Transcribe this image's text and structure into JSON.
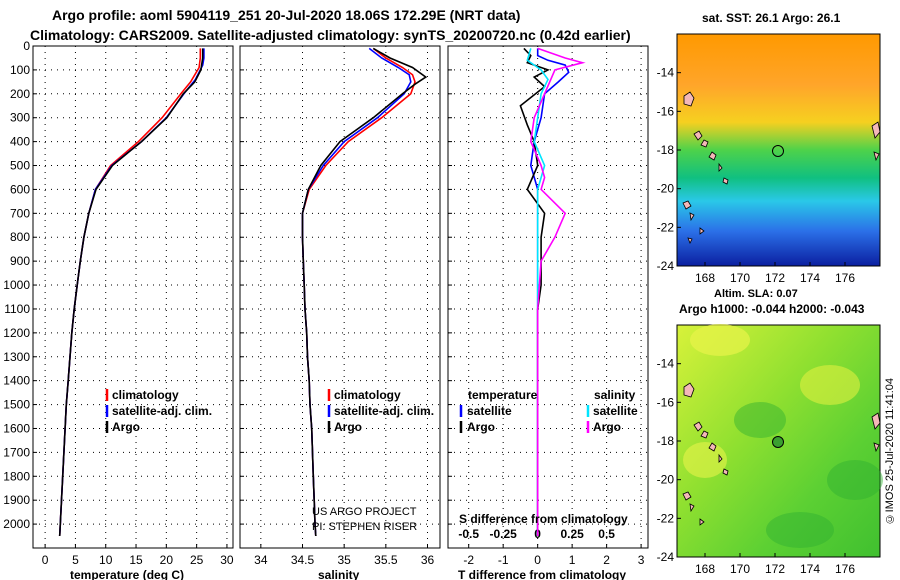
{
  "titles": {
    "line1": "Argo profile: aoml 5904119_251 20-Jul-2020 18.06S 172.29E (NRT data)",
    "line2": "Climatology: CARS2009. Satellite-adjusted climatology: synTS_20200720.nc (0.42d earlier)"
  },
  "side_label": "©IMOS 25-Jul-2020 11:41:04",
  "colors": {
    "climatology": "#ff0000",
    "satellite": "#0000ff",
    "argo": "#000000",
    "sat_salinity": "#00e5ff",
    "argo_salinity": "#ff00ff"
  },
  "chart_data": [
    {
      "type": "line",
      "name": "temperature",
      "xlabel": "temperature (deg C)",
      "xlim": [
        -2,
        31
      ],
      "ylim": [
        2100,
        0
      ],
      "xticks": [
        "0",
        "5",
        "10",
        "15",
        "20",
        "25",
        "30"
      ],
      "xtick_values": [
        0,
        5,
        10,
        15,
        20,
        25,
        30
      ],
      "yticks": [
        "0",
        "100",
        "200",
        "300",
        "400",
        "500",
        "600",
        "700",
        "800",
        "900",
        "1000",
        "1100",
        "1200",
        "1300",
        "1400",
        "1500",
        "1600",
        "1700",
        "1800",
        "1900",
        "2000"
      ],
      "ytick_values": [
        0,
        100,
        200,
        300,
        400,
        500,
        600,
        700,
        800,
        900,
        1000,
        1100,
        1200,
        1300,
        1400,
        1500,
        1600,
        1700,
        1800,
        1900,
        2000
      ],
      "legend": [
        "climatology",
        "satellite-adj. clim.",
        "Argo"
      ],
      "series": [
        {
          "name": "climatology",
          "color": "#ff0000",
          "points": [
            [
              25.6,
              10
            ],
            [
              25.6,
              50
            ],
            [
              25.4,
              90
            ],
            [
              24.0,
              150
            ],
            [
              22.4,
              200
            ],
            [
              19.3,
              300
            ],
            [
              15.4,
              400
            ],
            [
              10.8,
              500
            ],
            [
              8.3,
              600
            ],
            [
              7.2,
              700
            ],
            [
              6.4,
              800
            ],
            [
              5.8,
              900
            ],
            [
              5.3,
              1000
            ],
            [
              4.8,
              1100
            ],
            [
              4.4,
              1200
            ],
            [
              4.1,
              1300
            ],
            [
              3.8,
              1400
            ],
            [
              3.5,
              1500
            ],
            [
              3.3,
              1600
            ],
            [
              3.1,
              1700
            ],
            [
              2.9,
              1800
            ],
            [
              2.7,
              1900
            ],
            [
              2.5,
              2000
            ],
            [
              2.4,
              2050
            ]
          ]
        },
        {
          "name": "satellite-adj. clim.",
          "color": "#0000ff",
          "points": [
            [
              26.2,
              10
            ],
            [
              26.2,
              50
            ],
            [
              26.0,
              80
            ],
            [
              25.6,
              100
            ],
            [
              24.8,
              140
            ],
            [
              22.9,
              200
            ],
            [
              20.0,
              300
            ],
            [
              15.9,
              400
            ],
            [
              11.0,
              500
            ],
            [
              8.3,
              600
            ],
            [
              7.2,
              700
            ],
            [
              6.4,
              800
            ],
            [
              5.8,
              900
            ],
            [
              5.3,
              1000
            ],
            [
              4.8,
              1100
            ],
            [
              4.4,
              1200
            ],
            [
              4.1,
              1300
            ],
            [
              3.8,
              1400
            ],
            [
              3.5,
              1500
            ],
            [
              3.3,
              1600
            ],
            [
              3.1,
              1700
            ],
            [
              2.9,
              1800
            ],
            [
              2.7,
              1900
            ],
            [
              2.5,
              2000
            ],
            [
              2.4,
              2050
            ]
          ]
        },
        {
          "name": "Argo",
          "color": "#000000",
          "points": [
            [
              26.0,
              10
            ],
            [
              26.0,
              50
            ],
            [
              25.7,
              100
            ],
            [
              24.7,
              150
            ],
            [
              22.8,
              200
            ],
            [
              20.1,
              300
            ],
            [
              15.9,
              400
            ],
            [
              11.1,
              500
            ],
            [
              8.4,
              600
            ],
            [
              7.2,
              700
            ],
            [
              6.4,
              800
            ],
            [
              5.8,
              900
            ],
            [
              5.3,
              1000
            ],
            [
              4.8,
              1100
            ],
            [
              4.4,
              1200
            ],
            [
              4.1,
              1300
            ],
            [
              3.8,
              1400
            ],
            [
              3.5,
              1500
            ],
            [
              3.3,
              1600
            ],
            [
              3.1,
              1700
            ],
            [
              2.9,
              1800
            ],
            [
              2.7,
              1900
            ],
            [
              2.5,
              2000
            ],
            [
              2.4,
              2050
            ]
          ]
        }
      ]
    },
    {
      "type": "line",
      "name": "salinity",
      "xlabel": "salinity",
      "xlim": [
        33.75,
        36.15
      ],
      "ylim": [
        2100,
        0
      ],
      "xticks": [
        "34",
        "34.5",
        "35",
        "35.5",
        "36"
      ],
      "xtick_values": [
        34,
        34.5,
        35,
        35.5,
        36
      ],
      "legend": [
        "climatology",
        "satellite-adj. clim.",
        "Argo"
      ],
      "annotation": [
        "US ARGO PROJECT",
        "PI: STEPHEN RISER"
      ],
      "series": [
        {
          "name": "climatology",
          "color": "#ff0000",
          "points": [
            [
              35.35,
              10
            ],
            [
              35.5,
              50
            ],
            [
              35.7,
              90
            ],
            [
              35.82,
              120
            ],
            [
              35.85,
              150
            ],
            [
              35.8,
              200
            ],
            [
              35.45,
              300
            ],
            [
              35.05,
              400
            ],
            [
              34.78,
              500
            ],
            [
              34.58,
              600
            ],
            [
              34.5,
              700
            ],
            [
              34.5,
              800
            ],
            [
              34.51,
              900
            ],
            [
              34.52,
              1000
            ],
            [
              34.53,
              1100
            ],
            [
              34.55,
              1200
            ],
            [
              34.56,
              1300
            ],
            [
              34.58,
              1400
            ],
            [
              34.59,
              1500
            ],
            [
              34.61,
              1600
            ],
            [
              34.62,
              1700
            ],
            [
              34.63,
              1800
            ],
            [
              34.64,
              1900
            ],
            [
              34.65,
              2000
            ],
            [
              34.66,
              2050
            ]
          ]
        },
        {
          "name": "satellite-adj. clim.",
          "color": "#0000ff",
          "points": [
            [
              35.3,
              10
            ],
            [
              35.45,
              50
            ],
            [
              35.65,
              90
            ],
            [
              35.78,
              120
            ],
            [
              35.8,
              150
            ],
            [
              35.72,
              200
            ],
            [
              35.4,
              300
            ],
            [
              35.0,
              400
            ],
            [
              34.75,
              500
            ],
            [
              34.57,
              600
            ],
            [
              34.5,
              700
            ],
            [
              34.5,
              800
            ],
            [
              34.51,
              900
            ],
            [
              34.52,
              1000
            ],
            [
              34.53,
              1100
            ],
            [
              34.55,
              1200
            ],
            [
              34.56,
              1300
            ],
            [
              34.58,
              1400
            ],
            [
              34.59,
              1500
            ],
            [
              34.61,
              1600
            ],
            [
              34.62,
              1700
            ],
            [
              34.63,
              1800
            ],
            [
              34.64,
              1900
            ],
            [
              34.65,
              2000
            ],
            [
              34.66,
              2050
            ]
          ]
        },
        {
          "name": "Argo",
          "color": "#000000",
          "points": [
            [
              35.35,
              10
            ],
            [
              35.55,
              50
            ],
            [
              35.82,
              90
            ],
            [
              35.98,
              130
            ],
            [
              35.85,
              160
            ],
            [
              35.7,
              200
            ],
            [
              35.35,
              300
            ],
            [
              34.95,
              400
            ],
            [
              34.72,
              500
            ],
            [
              34.57,
              600
            ],
            [
              34.5,
              700
            ],
            [
              34.5,
              800
            ],
            [
              34.51,
              900
            ],
            [
              34.52,
              1000
            ],
            [
              34.53,
              1100
            ],
            [
              34.55,
              1200
            ],
            [
              34.56,
              1300
            ],
            [
              34.58,
              1400
            ],
            [
              34.59,
              1500
            ],
            [
              34.61,
              1600
            ],
            [
              34.62,
              1700
            ],
            [
              34.63,
              1800
            ],
            [
              34.64,
              1900
            ],
            [
              34.65,
              2000
            ],
            [
              34.66,
              2050
            ]
          ]
        }
      ]
    },
    {
      "type": "line",
      "name": "difference from climatology",
      "xlabel": "T difference from climatology",
      "top_xlabel": "S difference from climatology",
      "xlim": [
        -2.6,
        3.2
      ],
      "ylim": [
        2100,
        0
      ],
      "xticks": [
        "-2",
        "-1",
        "0",
        "1",
        "2",
        "3"
      ],
      "xtick_values": [
        -2,
        -1,
        0,
        1,
        2,
        3
      ],
      "sticks": [
        "-0.5",
        "-0.25",
        "0",
        "0.25",
        "0.5"
      ],
      "stick_positions_in_t_units": [
        -2,
        -1,
        0,
        1,
        2
      ],
      "legend_temperature_title": "temperature",
      "legend_salinity_title": "salinity",
      "legend_temperature": [
        "satellite",
        "Argo"
      ],
      "legend_salinity": [
        "satellite",
        "Argo"
      ],
      "series": [
        {
          "name": "T satellite",
          "color": "#0000ff",
          "points": [
            [
              0.0,
              10
            ],
            [
              0.0,
              40
            ],
            [
              0.3,
              60
            ],
            [
              0.8,
              80
            ],
            [
              0.9,
              110
            ],
            [
              0.6,
              150
            ],
            [
              0.2,
              200
            ],
            [
              0.1,
              300
            ],
            [
              -0.1,
              400
            ],
            [
              -0.2,
              500
            ],
            [
              0.0,
              600
            ],
            [
              0.0,
              800
            ],
            [
              0.0,
              1000
            ],
            [
              0.0,
              1500
            ],
            [
              0.0,
              2050
            ]
          ]
        },
        {
          "name": "T Argo",
          "color": "#000000",
          "points": [
            [
              -0.4,
              10
            ],
            [
              -0.2,
              40
            ],
            [
              -0.3,
              70
            ],
            [
              0.3,
              100
            ],
            [
              -0.1,
              130
            ],
            [
              0.2,
              170
            ],
            [
              -0.5,
              250
            ],
            [
              -0.3,
              330
            ],
            [
              -0.1,
              400
            ],
            [
              0.0,
              500
            ],
            [
              -0.3,
              600
            ],
            [
              0.2,
              700
            ],
            [
              0.1,
              800
            ],
            [
              0.1,
              900
            ],
            [
              0.1,
              1000
            ],
            [
              0.0,
              1100
            ],
            [
              0.0,
              1500
            ],
            [
              0.0,
              2050
            ]
          ]
        },
        {
          "name": "S satellite",
          "color": "#00e5ff",
          "points": [
            [
              -0.2,
              10
            ],
            [
              -0.3,
              60
            ],
            [
              0.1,
              100
            ],
            [
              0.3,
              140
            ],
            [
              0.1,
              200
            ],
            [
              0.0,
              300
            ],
            [
              -0.1,
              400
            ],
            [
              0.2,
              500
            ],
            [
              0.0,
              600
            ],
            [
              0.0,
              800
            ],
            [
              0.0,
              1000
            ],
            [
              0.0,
              1500
            ],
            [
              0.0,
              2050
            ]
          ]
        },
        {
          "name": "S Argo",
          "color": "#ff00ff",
          "points": [
            [
              0.0,
              10
            ],
            [
              0.8,
              50
            ],
            [
              1.3,
              70
            ],
            [
              0.5,
              100
            ],
            [
              0.2,
              200
            ],
            [
              -0.1,
              300
            ],
            [
              -0.2,
              400
            ],
            [
              0.1,
              500
            ],
            [
              0.2,
              550
            ],
            [
              0.1,
              600
            ],
            [
              0.8,
              700
            ],
            [
              0.5,
              800
            ],
            [
              0.1,
              900
            ],
            [
              0.05,
              1000
            ],
            [
              0.0,
              1100
            ],
            [
              0.0,
              1500
            ],
            [
              0.0,
              2050
            ]
          ]
        }
      ]
    },
    {
      "type": "heatmap",
      "name": "sst map",
      "title": "sat. SST: 26.1 Argo: 26.1",
      "xticks": [
        "168",
        "170",
        "172",
        "174",
        "176"
      ],
      "xtick_values": [
        168,
        170,
        172,
        174,
        176
      ],
      "yticks": [
        "-14",
        "-16",
        "-18",
        "-20",
        "-22",
        "-24"
      ],
      "ytick_values": [
        -14,
        -16,
        -18,
        -20,
        -22,
        -24
      ],
      "xlim": [
        166.4,
        178
      ],
      "ylim": [
        -24,
        -12
      ],
      "profile_location": [
        172.29,
        -18.06
      ]
    },
    {
      "type": "heatmap",
      "name": "sla map",
      "title": "Altim. SLA: 0.07",
      "subtitle": "Argo h1000: -0.044 h2000: -0.043",
      "xticks": [
        "168",
        "170",
        "172",
        "174",
        "176"
      ],
      "xtick_values": [
        168,
        170,
        172,
        174,
        176
      ],
      "yticks": [
        "-14",
        "-16",
        "-18",
        "-20",
        "-22",
        "-24"
      ],
      "ytick_values": [
        -14,
        -16,
        -18,
        -20,
        -22,
        -24
      ],
      "xlim": [
        166.4,
        178
      ],
      "ylim": [
        -24,
        -12
      ],
      "profile_location": [
        172.29,
        -18.06
      ]
    }
  ]
}
